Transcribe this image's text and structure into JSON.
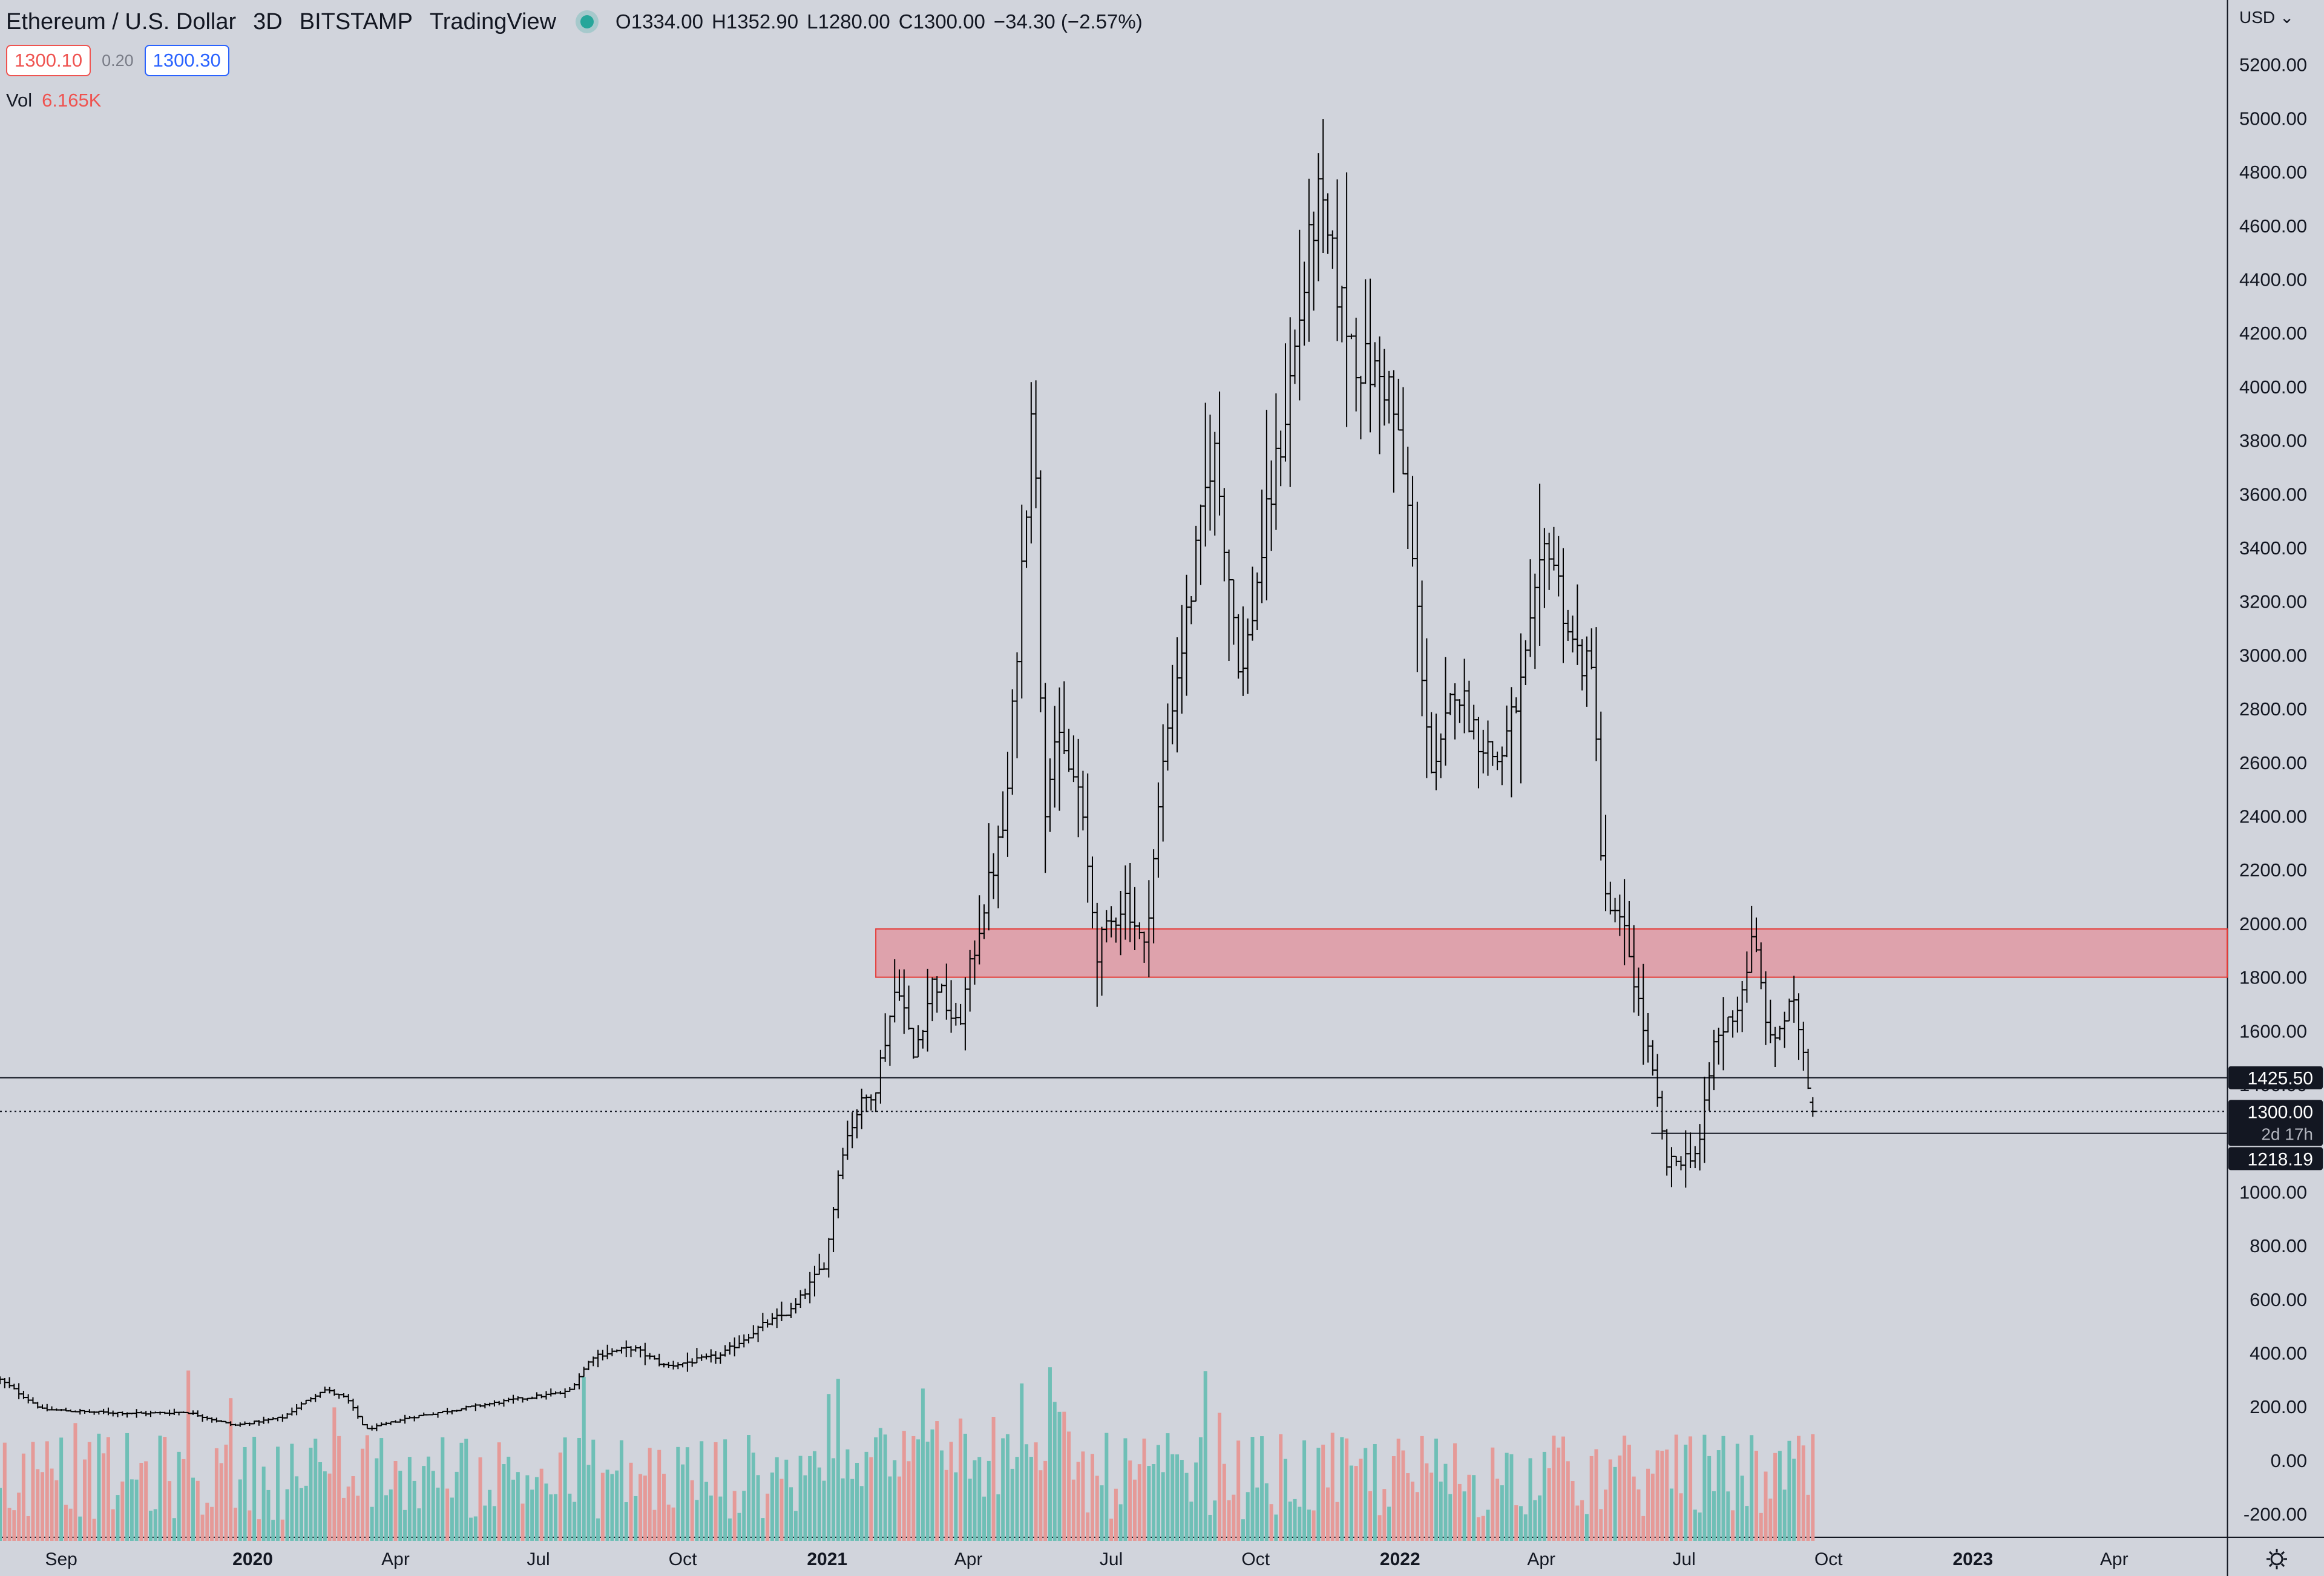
{
  "legend": {
    "symbol": "Ethereum / U.S. Dollar",
    "interval": "3D",
    "exchange": "BITSTAMP",
    "source": "TradingView",
    "open": "O1334.00",
    "high": "H1352.90",
    "low": "L1280.00",
    "close": "C1300.00",
    "change": "−34.30 (−2.57%)",
    "bid": "1300.10",
    "spread": "0.20",
    "ask": "1300.30",
    "vol_label": "Vol",
    "vol_value": "6.165K"
  },
  "price_scale": {
    "currency": "USD",
    "current_price_label": "1300.00",
    "countdown_label": "2d 17h",
    "line_labels": [
      "1425.50",
      "1218.19"
    ],
    "settings_icon": "gear-icon"
  },
  "colors": {
    "background": "#d1d4dc",
    "bars": "#000000",
    "volume_up": "#6fbfb6",
    "volume_down": "#e59a98",
    "zone_fill": "#dea2ac",
    "zone_border": "#e53935",
    "bid": "#ef5350",
    "ask": "#2962ff"
  },
  "chart_data": {
    "type": "ohlc",
    "xlabel": "",
    "ylabel": "",
    "ylim": [
      -300,
      5400
    ],
    "y_ticks": [
      5200,
      5000,
      4800,
      4600,
      4400,
      4200,
      4000,
      3800,
      3600,
      3400,
      3200,
      3000,
      2800,
      2600,
      2400,
      2200,
      2000,
      1800,
      1600,
      1400,
      1200,
      1000,
      800,
      600,
      400,
      200,
      0,
      -200
    ],
    "x_ticks": [
      {
        "date": "2019-09-01",
        "label": "Sep"
      },
      {
        "date": "2020-01-01",
        "label": "2020"
      },
      {
        "date": "2020-04-01",
        "label": "Apr"
      },
      {
        "date": "2020-07-01",
        "label": "Jul"
      },
      {
        "date": "2020-10-01",
        "label": "Oct"
      },
      {
        "date": "2021-01-01",
        "label": "2021"
      },
      {
        "date": "2021-04-01",
        "label": "Apr"
      },
      {
        "date": "2021-07-01",
        "label": "Jul"
      },
      {
        "date": "2021-10-01",
        "label": "Oct"
      },
      {
        "date": "2022-01-01",
        "label": "2022"
      },
      {
        "date": "2022-04-01",
        "label": "Apr"
      },
      {
        "date": "2022-07-01",
        "label": "Jul"
      },
      {
        "date": "2022-10-01",
        "label": "Oct"
      },
      {
        "date": "2023-01-01",
        "label": "2023"
      },
      {
        "date": "2023-04-01",
        "label": "Apr"
      }
    ],
    "x_range": [
      "2019-07-24",
      "2023-06-12"
    ],
    "price_path": [
      [
        "2019-07-24",
        300
      ],
      [
        "2019-08-20",
        190
      ],
      [
        "2019-09-20",
        180
      ],
      [
        "2019-10-25",
        175
      ],
      [
        "2019-11-20",
        180
      ],
      [
        "2019-12-20",
        130
      ],
      [
        "2020-01-20",
        160
      ],
      [
        "2020-02-15",
        265
      ],
      [
        "2020-03-01",
        230
      ],
      [
        "2020-03-13",
        115
      ],
      [
        "2020-04-10",
        160
      ],
      [
        "2020-05-20",
        200
      ],
      [
        "2020-06-20",
        230
      ],
      [
        "2020-07-20",
        255
      ],
      [
        "2020-08-05",
        390
      ],
      [
        "2020-08-30",
        420
      ],
      [
        "2020-09-20",
        350
      ],
      [
        "2020-10-25",
        390
      ],
      [
        "2020-11-20",
        500
      ],
      [
        "2020-12-10",
        560
      ],
      [
        "2020-12-31",
        740
      ],
      [
        "2021-01-10",
        1150
      ],
      [
        "2021-01-20",
        1300
      ],
      [
        "2021-02-01",
        1400
      ],
      [
        "2021-02-15",
        1800
      ],
      [
        "2021-02-25",
        1500
      ],
      [
        "2021-03-10",
        1800
      ],
      [
        "2021-03-25",
        1600
      ],
      [
        "2021-04-10",
        2050
      ],
      [
        "2021-04-25",
        2400
      ],
      [
        "2021-05-08",
        3600
      ],
      [
        "2021-05-12",
        4100
      ],
      [
        "2021-05-19",
        2400
      ],
      [
        "2021-05-25",
        2700
      ],
      [
        "2021-06-10",
        2500
      ],
      [
        "2021-06-22",
        1900
      ],
      [
        "2021-07-10",
        2100
      ],
      [
        "2021-07-22",
        1900
      ],
      [
        "2021-08-05",
        2700
      ],
      [
        "2021-08-20",
        3200
      ],
      [
        "2021-09-04",
        3800
      ],
      [
        "2021-09-22",
        2900
      ],
      [
        "2021-10-08",
        3500
      ],
      [
        "2021-10-20",
        3900
      ],
      [
        "2021-11-09",
        4700
      ],
      [
        "2021-11-25",
        4300
      ],
      [
        "2021-12-05",
        4100
      ],
      [
        "2021-12-25",
        4000
      ],
      [
        "2022-01-05",
        3600
      ],
      [
        "2022-01-22",
        2500
      ],
      [
        "2022-02-05",
        2900
      ],
      [
        "2022-02-20",
        2700
      ],
      [
        "2022-03-05",
        2600
      ],
      [
        "2022-03-20",
        2900
      ],
      [
        "2022-04-05",
        3450
      ],
      [
        "2022-04-20",
        3050
      ],
      [
        "2022-05-05",
        2900
      ],
      [
        "2022-05-10",
        2100
      ],
      [
        "2022-05-25",
        1950
      ],
      [
        "2022-06-12",
        1400
      ],
      [
        "2022-06-20",
        1100
      ],
      [
        "2022-07-10",
        1150
      ],
      [
        "2022-07-20",
        1550
      ],
      [
        "2022-08-05",
        1700
      ],
      [
        "2022-08-14",
        1950
      ],
      [
        "2022-08-25",
        1550
      ],
      [
        "2022-09-08",
        1700
      ],
      [
        "2022-09-13",
        1600
      ],
      [
        "2022-09-21",
        1300
      ]
    ],
    "volume_band_pct": {
      "base": -300,
      "max_height": 1000
    },
    "resistance_zone": {
      "low": 1800,
      "high": 1980,
      "start": "2021-02-01"
    },
    "horizontal_lines": [
      {
        "price": 1425.5,
        "style": "solid",
        "start": "2019-07-24"
      },
      {
        "price": 1300,
        "style": "dotted",
        "start": "2019-07-24"
      },
      {
        "price": 1218.19,
        "style": "solid",
        "start": "2022-06-10"
      }
    ],
    "last_price": 1300
  }
}
